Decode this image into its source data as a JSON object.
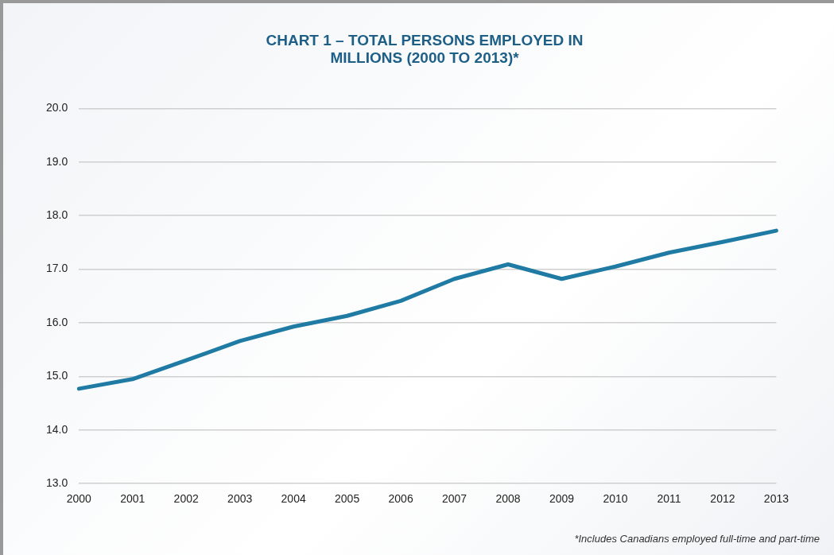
{
  "chart_data": {
    "type": "line",
    "title": "CHART 1 – TOTAL PERSONS EMPLOYED IN MILLIONS (2000 TO 2013)*",
    "categories": [
      "2000",
      "2001",
      "2002",
      "2003",
      "2004",
      "2005",
      "2006",
      "2007",
      "2008",
      "2009",
      "2010",
      "2011",
      "2012",
      "2013"
    ],
    "series": [
      {
        "color": "#1f7ba3",
        "values": [
          14.77,
          14.95,
          15.3,
          15.66,
          15.93,
          16.13,
          16.41,
          16.82,
          17.09,
          16.82,
          17.05,
          17.31,
          17.51,
          17.72
        ]
      }
    ],
    "ylim": [
      13,
      20
    ],
    "yticks": [
      {
        "value": 13,
        "label": "13.0"
      },
      {
        "value": 14,
        "label": "14.0"
      },
      {
        "value": 15,
        "label": "15.0"
      },
      {
        "value": 16,
        "label": "16.0"
      },
      {
        "value": 17,
        "label": "17.0"
      },
      {
        "value": 18,
        "label": "18.0"
      },
      {
        "value": 19,
        "label": "19.0"
      },
      {
        "value": 20,
        "label": "20.0"
      }
    ],
    "grid": "y",
    "marker": "none",
    "line_style": "solid",
    "annotations": [
      "*Includes Canadians employed full-time and part-time"
    ]
  }
}
